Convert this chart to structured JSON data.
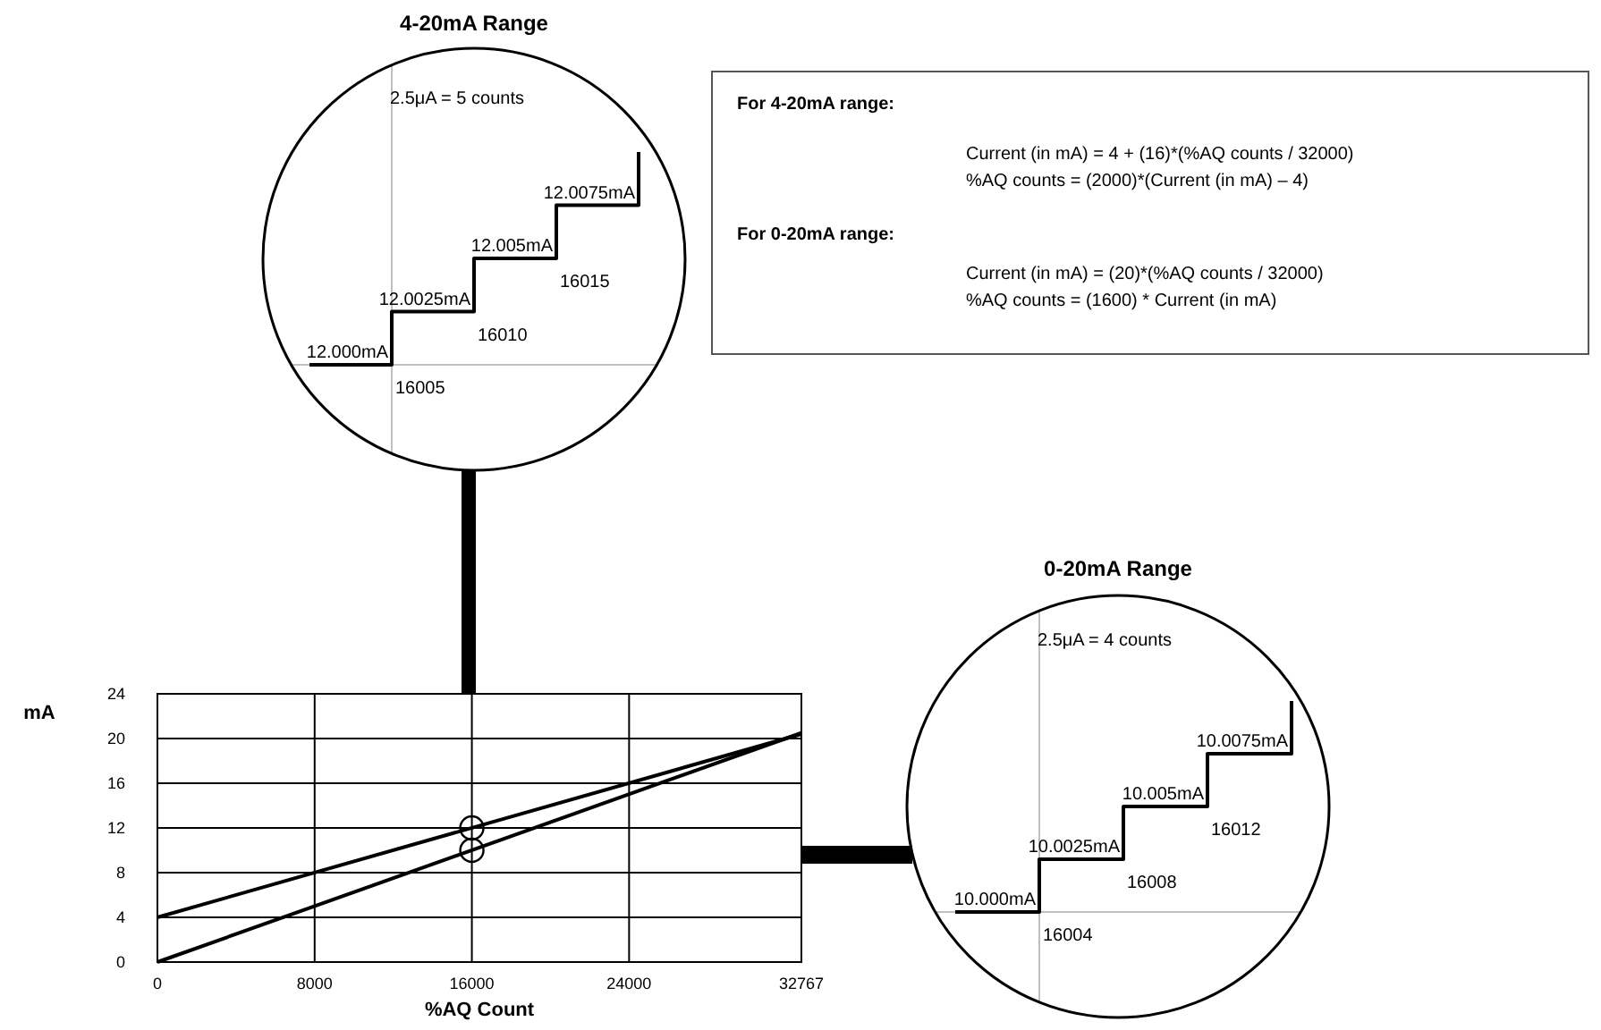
{
  "chart_data": [
    {
      "type": "step",
      "title": "4-20mA Range",
      "color": "#000000",
      "categories": [
        null,
        null,
        null,
        null,
        null
      ],
      "values": [
        12.0,
        12.0025,
        12.005,
        12.0075,
        12.01
      ],
      "value_labels": [
        "12.000mA",
        "12.0025mA",
        "12.005mA",
        "12.0075mA",
        null
      ],
      "annotations": [
        "2.5μA = 5 counts",
        "16005",
        "16010",
        "16015"
      ]
    },
    {
      "type": "other",
      "annotations": [
        "For 4-20mA range:",
        "Current (in mA) = 4 + (16)*(%AQ counts / 32000)",
        "%AQ counts = (2000)*(Current (in mA) – 4)",
        "For 0-20mA range:",
        "Current (in mA) = (20)*(%AQ counts / 32000)",
        "%AQ counts = (1600) * Current (in mA)"
      ]
    },
    {
      "type": "line",
      "xlabel": "%AQ Count",
      "ylabel": "mA",
      "xlim": [
        0,
        32767
      ],
      "ylim": [
        0,
        24
      ],
      "xticks": [
        0,
        8000,
        16000,
        24000,
        32767
      ],
      "yticks": [
        0,
        4,
        8,
        12,
        16,
        20,
        24
      ],
      "grid": true,
      "series": [
        {
          "color": "#000000",
          "x": [
            0,
            32767
          ],
          "values": [
            4,
            20.4
          ]
        },
        {
          "color": "#000000",
          "x": [
            0,
            32767
          ],
          "values": [
            0,
            20.5
          ]
        },
        {
          "type": "scatter",
          "color": "#000000",
          "marker": "circle",
          "x": [
            16000,
            16000
          ],
          "values": [
            12,
            10
          ]
        }
      ]
    },
    {
      "type": "step",
      "title": "0-20mA Range",
      "color": "#000000",
      "categories": [
        null,
        null,
        null,
        null,
        null
      ],
      "values": [
        10.0,
        10.0025,
        10.005,
        10.0075,
        10.01
      ],
      "value_labels": [
        "10.000mA",
        "10.0025mA",
        "10.005mA",
        "10.0075mA",
        null
      ],
      "annotations": [
        "2.5μA = 4 counts",
        "16004",
        "16008",
        "16012"
      ]
    }
  ]
}
